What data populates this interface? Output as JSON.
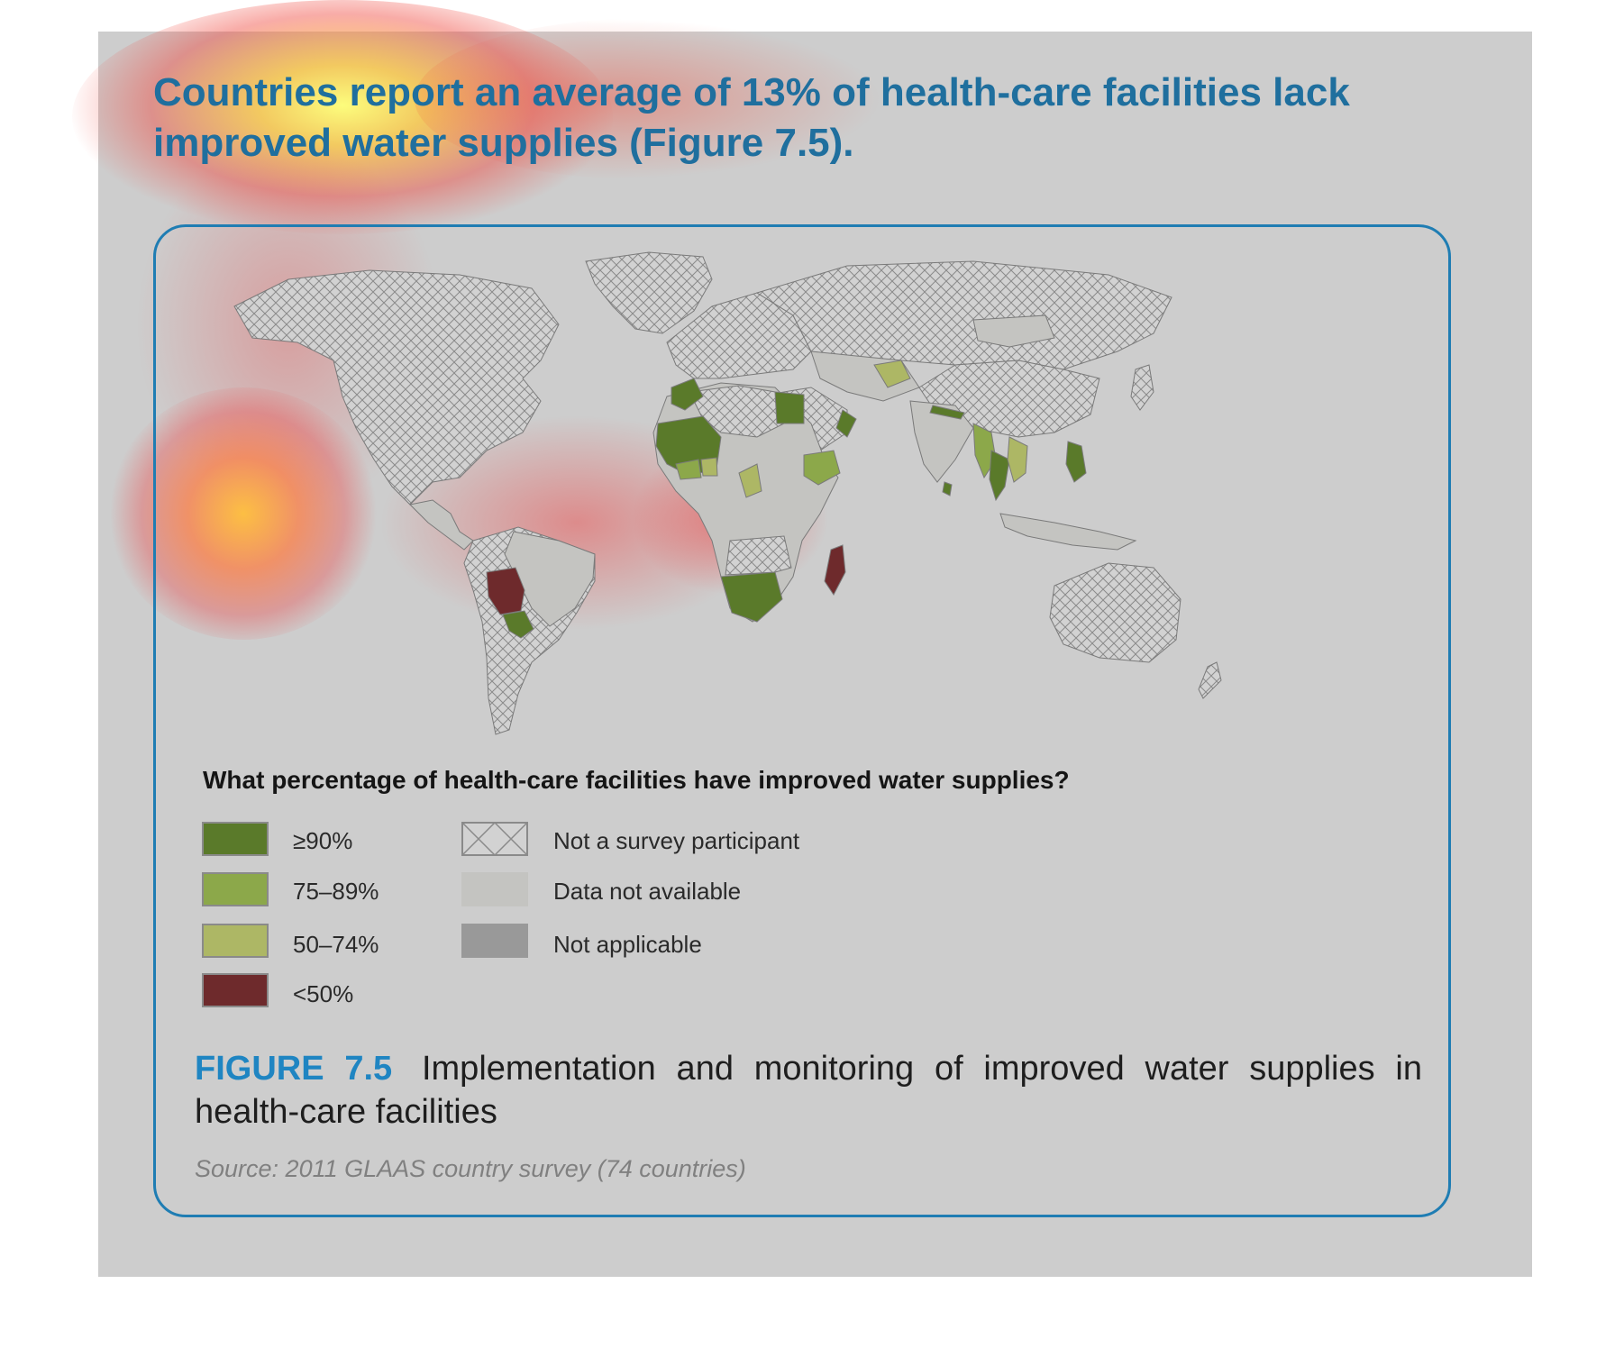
{
  "headline": "Countries report an average of 13% of health-care facilities lack improved water supplies (Figure 7.5).",
  "legend": {
    "question": "What percentage of health-care facilities have improved water supplies?",
    "items": [
      {
        "label": "≥90%",
        "color": "#5a7a2a"
      },
      {
        "label": "75–89%",
        "color": "#8ca84a"
      },
      {
        "label": "50–74%",
        "color": "#adb765"
      },
      {
        "label": "<50%",
        "color": "#6e2a2c"
      },
      {
        "label": "Not a survey participant",
        "pattern": "crosshatch"
      },
      {
        "label": "Data not available",
        "color": "#c4c4c1"
      },
      {
        "label": "Not applicable",
        "color": "#999999"
      }
    ]
  },
  "caption": {
    "figure_label": "FIGURE 7.5",
    "text": "Implementation and monitoring of improved water supplies in health-care facilities"
  },
  "source": "Source: 2011 GLAAS country survey (74 countries)",
  "colors": {
    "accent": "#1f85c2",
    "headline": "#1f6f9e",
    "panel_background": "#cdcdcd",
    "card_border": "#1f7db3"
  },
  "overlay": "attention heatmap (red/yellow blobs)"
}
